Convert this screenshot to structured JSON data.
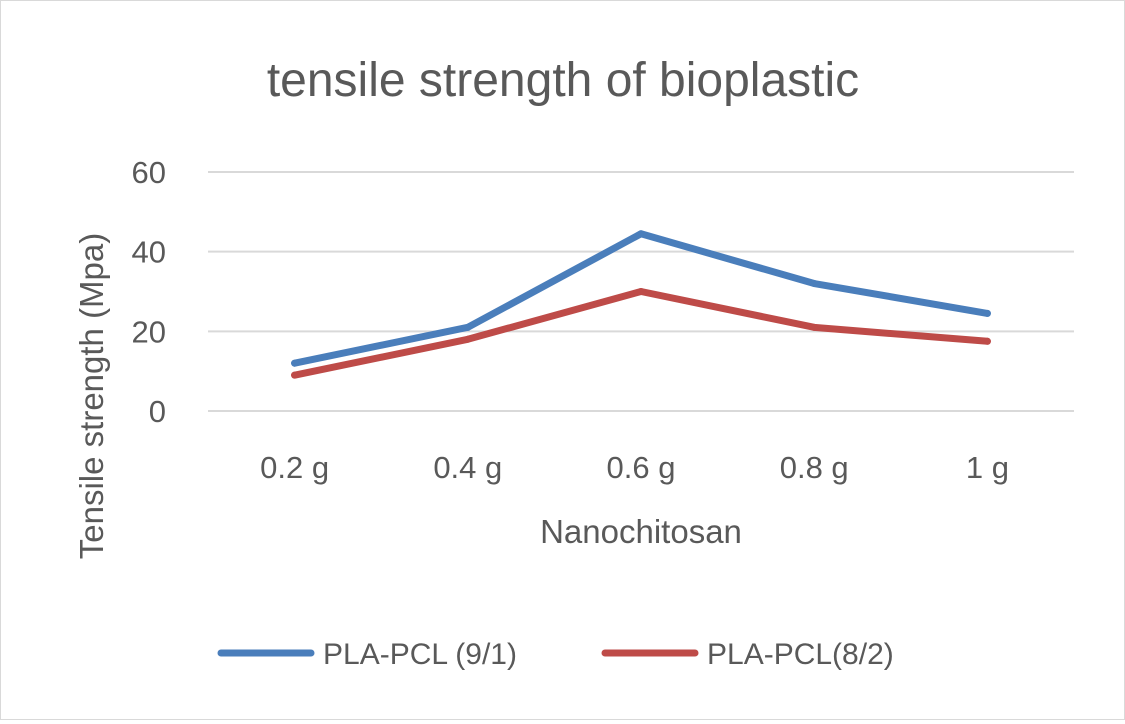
{
  "chart_data": {
    "type": "line",
    "title": "tensile strength of bioplastic",
    "xlabel": "Nanochitosan",
    "ylabel": "Tensile strength (Mpa)",
    "categories": [
      "0.2 g",
      "0.4 g",
      "0.6 g",
      "0.8 g",
      "1 g"
    ],
    "ylim": [
      0,
      60
    ],
    "yticks": [
      0,
      20,
      40,
      60
    ],
    "grid": true,
    "legend_position": "bottom",
    "series": [
      {
        "name": "PLA-PCL (9/1)",
        "values": [
          12,
          21,
          44.5,
          32,
          24.5
        ],
        "color": "#4a7ebb"
      },
      {
        "name": "PLA-PCL(8/2)",
        "values": [
          9,
          18,
          30,
          21,
          17.5
        ],
        "color": "#be4b48"
      }
    ]
  }
}
